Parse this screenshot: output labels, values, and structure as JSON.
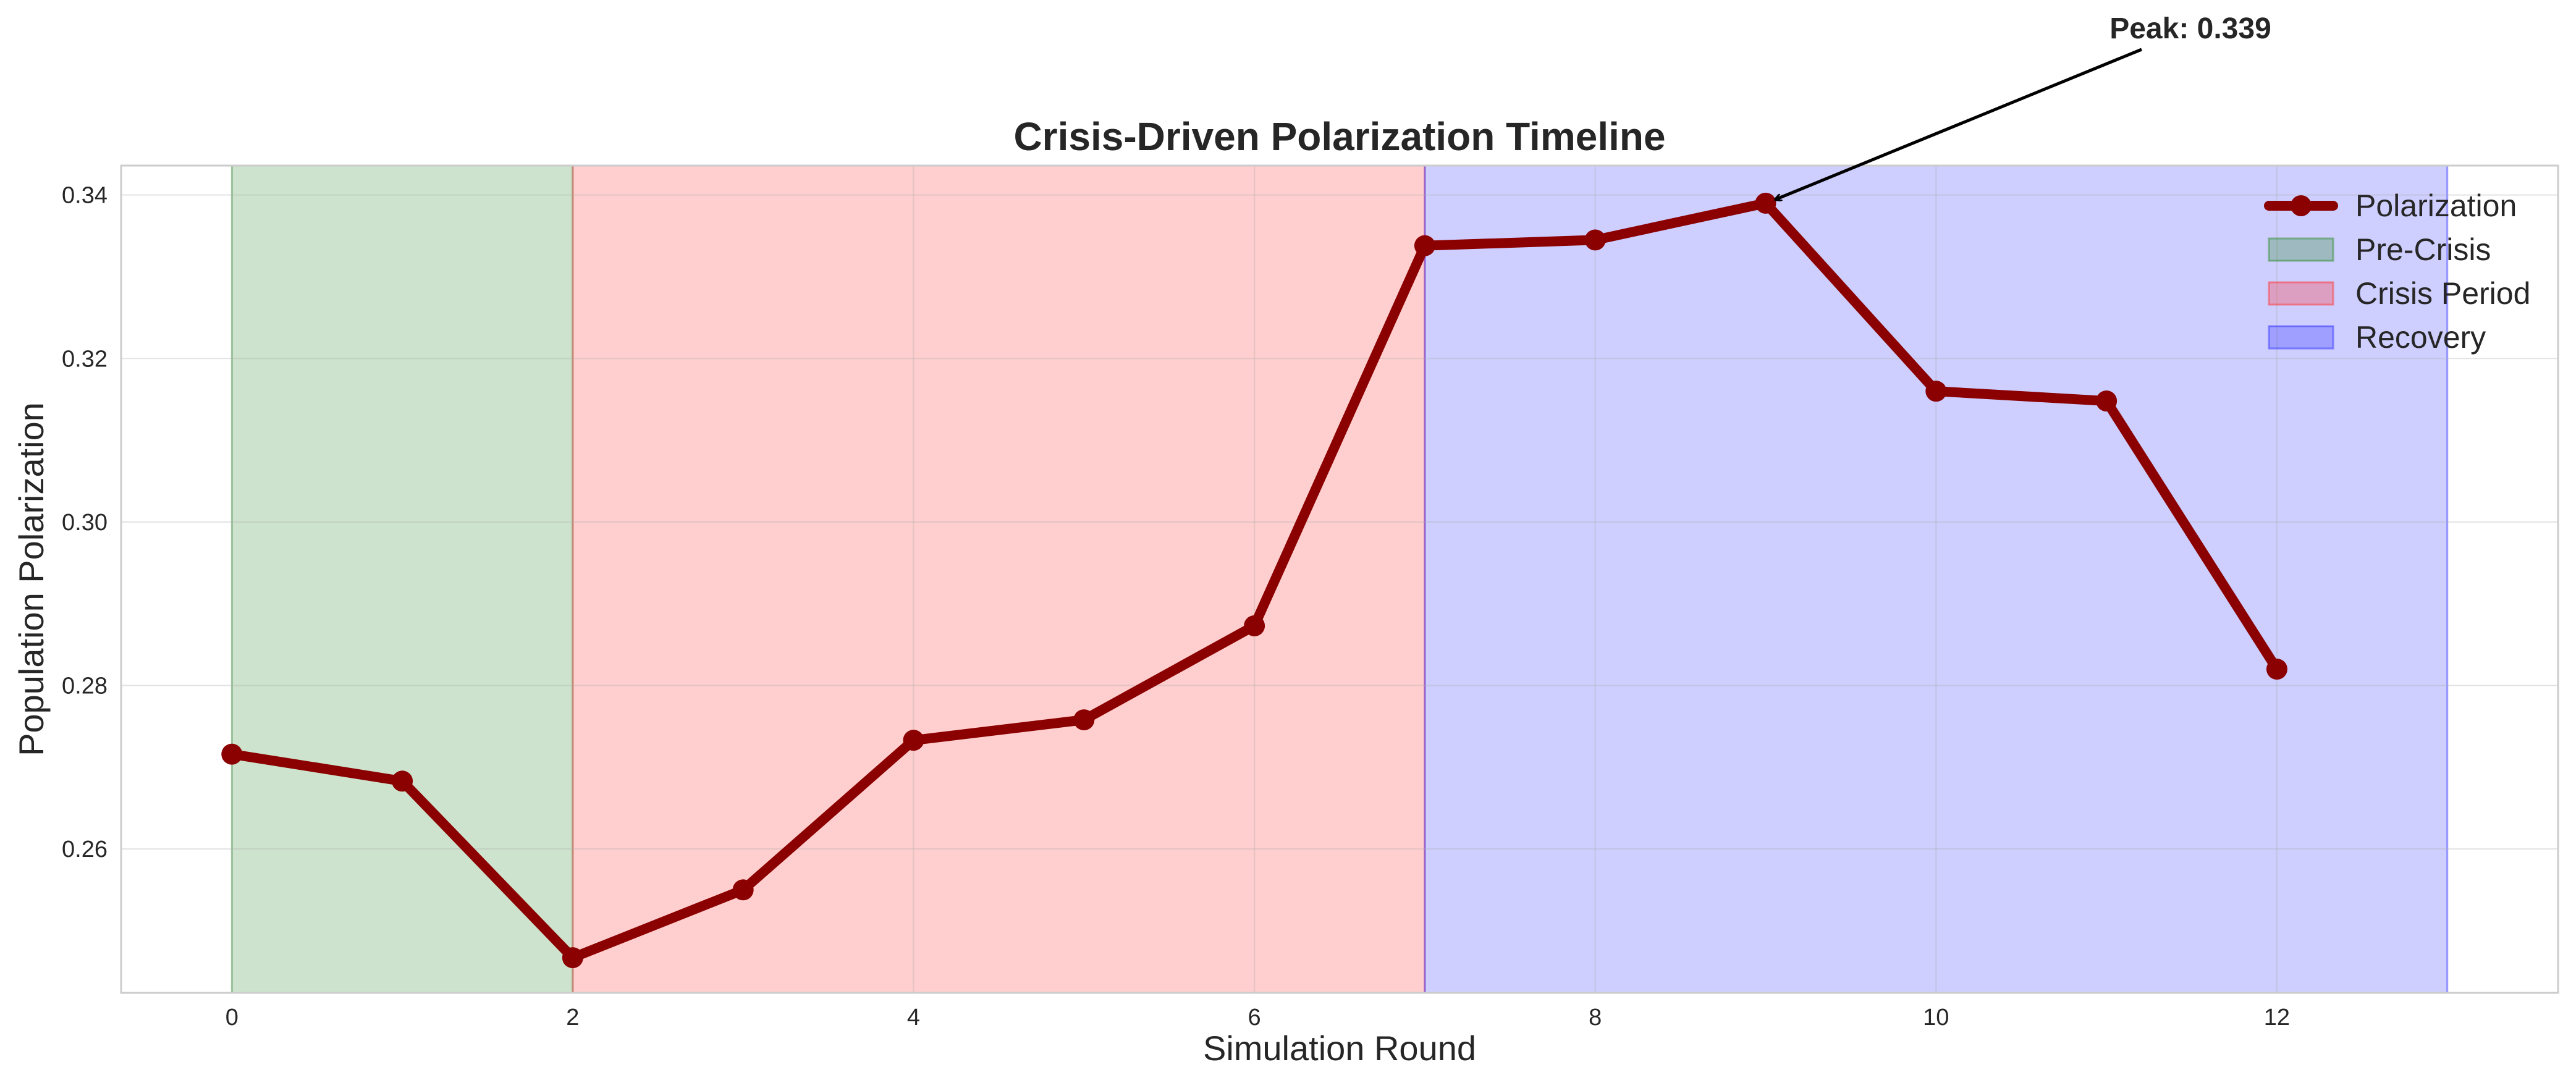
{
  "chart_data": {
    "type": "line",
    "title": "Crisis-Driven Polarization Timeline",
    "xlabel": "Simulation Round",
    "ylabel": "Population Polarization",
    "xlim": [
      -0.65,
      13.65
    ],
    "ylim": [
      0.2424,
      0.3436
    ],
    "xticks": [
      0,
      2,
      4,
      6,
      8,
      10,
      12
    ],
    "yticks": [
      0.26,
      0.28,
      0.3,
      0.32,
      0.34
    ],
    "ytick_labels": [
      "0.26",
      "0.28",
      "0.30",
      "0.32",
      "0.34"
    ],
    "grid": true,
    "legend_position": "top-right",
    "series": [
      {
        "name": "Polarization",
        "color": "#8b0000",
        "x": [
          0,
          1,
          2,
          3,
          4,
          5,
          6,
          7,
          8,
          9,
          10,
          11,
          12
        ],
        "y": [
          0.2716,
          0.2683,
          0.2467,
          0.255,
          0.2733,
          0.2758,
          0.2873,
          0.3338,
          0.3345,
          0.339,
          0.316,
          0.3148,
          0.282
        ]
      }
    ],
    "regions": [
      {
        "name": "Pre-Crisis",
        "x0": 0,
        "x1": 2,
        "color": "#2e8b2e"
      },
      {
        "name": "Crisis Period",
        "x0": 2,
        "x1": 7,
        "color": "#ff3333"
      },
      {
        "name": "Recovery",
        "x0": 7,
        "x1": 13,
        "color": "#3333ff"
      }
    ],
    "annotation": {
      "text": "Peak: 0.339",
      "x": 9,
      "y": 0.339
    }
  }
}
